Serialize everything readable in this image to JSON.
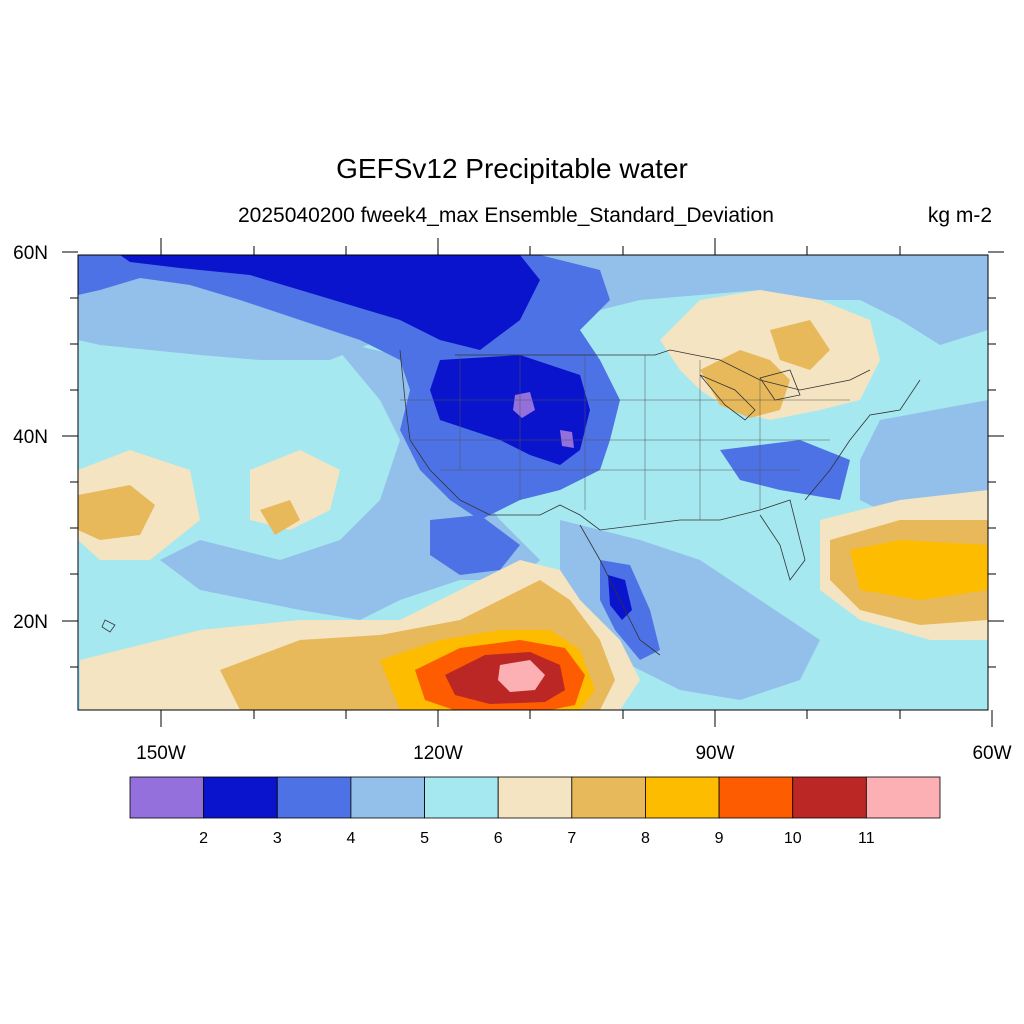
{
  "title": "GEFSv12 Precipitable water",
  "subtitle": "2025040200 fweek4_max Ensemble_Standard_Deviation",
  "units": "kg m-2",
  "axes": {
    "lat_labels": [
      "60N",
      "40N",
      "20N"
    ],
    "lon_labels": [
      "150W",
      "120W",
      "90W",
      "60W"
    ]
  },
  "colorbar": {
    "colors": [
      "#9370db",
      "#0a14cd",
      "#4d72e6",
      "#93c0ea",
      "#a5e8f0",
      "#f4e4c1",
      "#e8b95a",
      "#fdbc00",
      "#fd5c00",
      "#bb2724",
      "#fcb0b4"
    ],
    "labels": [
      "2",
      "3",
      "4",
      "5",
      "6",
      "7",
      "8",
      "9",
      "10",
      "11"
    ]
  }
}
